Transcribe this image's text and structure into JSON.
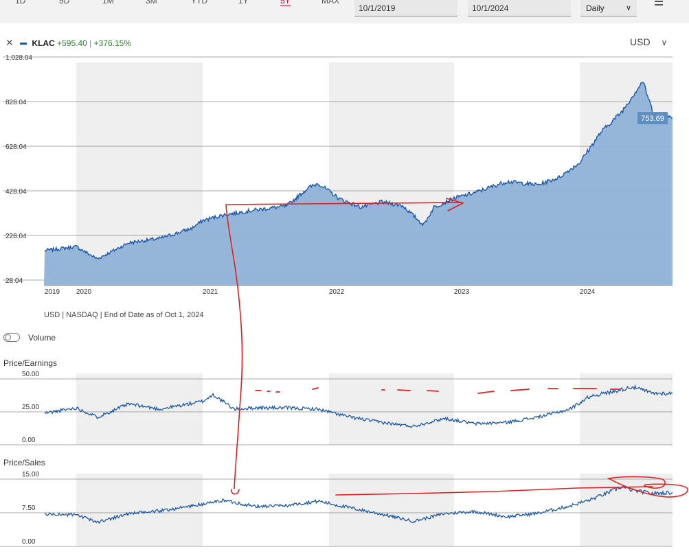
{
  "periods": [
    {
      "label": "1D",
      "active": false
    },
    {
      "label": "5D",
      "active": false
    },
    {
      "label": "1M",
      "active": false
    },
    {
      "label": "3M",
      "active": false
    },
    {
      "label": "YTD",
      "active": false
    },
    {
      "label": "1Y",
      "active": false
    },
    {
      "label": "5Y",
      "active": true
    },
    {
      "label": "MAX",
      "active": false
    }
  ],
  "date_range": {
    "start": "10/1/2019",
    "end": "10/1/2024"
  },
  "frequency": "Daily",
  "legend": {
    "ticker": "KLAC",
    "change": "+595.40",
    "change_pct": "+376.15%",
    "separator": "|"
  },
  "currency": "USD",
  "source_note": "USD | NASDAQ | End of Date as of Oct 1, 2024",
  "volume_label": "Volume",
  "colors": {
    "line": "#1c57a5",
    "area": "#8fb2d6",
    "band": "#efefef",
    "annotation": "#e01f1f",
    "positive": "#2f7d32"
  },
  "chart_data": [
    {
      "type": "area",
      "title": "KLAC",
      "x_tick_labels": [
        "2019",
        "2020",
        "2021",
        "2022",
        "2023",
        "2024"
      ],
      "y_ticks": [
        28.04,
        228.04,
        428.04,
        628.04,
        828.04,
        1028.04
      ],
      "y_tick_labels": [
        "28.04",
        "228.04",
        "428.04",
        "628.04",
        "828.04",
        "1,028.04"
      ],
      "ylim": [
        28.04,
        1028.04
      ],
      "last_value_label": "753.69",
      "x": [
        "2019-10",
        "2020-01",
        "2020-03",
        "2020-06",
        "2020-09",
        "2020-12",
        "2021-01",
        "2021-03",
        "2021-06",
        "2021-09",
        "2021-11",
        "2021-12",
        "2022-02",
        "2022-04",
        "2022-06",
        "2022-08",
        "2022-10",
        "2022-11",
        "2023-01",
        "2023-03",
        "2023-06",
        "2023-09",
        "2023-11",
        "2024-01",
        "2024-03",
        "2024-05",
        "2024-07",
        "2024-08",
        "2024-10"
      ],
      "values": [
        160,
        178,
        123,
        195,
        215,
        260,
        295,
        320,
        342,
        360,
        440,
        462,
        392,
        355,
        378,
        362,
        275,
        355,
        395,
        420,
        470,
        455,
        488,
        555,
        690,
        783,
        920,
        775,
        754
      ]
    },
    {
      "type": "line",
      "title": "Price/Earnings",
      "y_ticks": [
        0,
        25,
        50
      ],
      "y_tick_labels": [
        "0.00",
        "25.00",
        "50.00"
      ],
      "ylim": [
        0,
        50
      ],
      "x": [
        "2019-10",
        "2020-01",
        "2020-03",
        "2020-06",
        "2020-09",
        "2021-01",
        "2021-02",
        "2021-04",
        "2021-06",
        "2021-09",
        "2021-12",
        "2022-03",
        "2022-06",
        "2022-09",
        "2022-12",
        "2023-03",
        "2023-06",
        "2023-09",
        "2023-12",
        "2024-02",
        "2024-04",
        "2024-05",
        "2024-06",
        "2024-08",
        "2024-10"
      ],
      "values": [
        24,
        28,
        21,
        31,
        27,
        33,
        38,
        27,
        28,
        28,
        27,
        21,
        17,
        14,
        20,
        16,
        17,
        21,
        27,
        37,
        40,
        42,
        44,
        39,
        39
      ]
    },
    {
      "type": "line",
      "title": "Price/Sales",
      "y_ticks": [
        0,
        7.5,
        15
      ],
      "y_tick_labels": [
        "0.00",
        "7.50",
        "15.00"
      ],
      "ylim": [
        0,
        15
      ],
      "x": [
        "2019-10",
        "2020-01",
        "2020-03",
        "2020-06",
        "2020-09",
        "2021-01",
        "2021-03",
        "2021-06",
        "2021-09",
        "2021-12",
        "2022-03",
        "2022-06",
        "2022-09",
        "2022-12",
        "2023-03",
        "2023-06",
        "2023-09",
        "2023-12",
        "2024-02",
        "2024-04",
        "2024-05",
        "2024-06",
        "2024-08",
        "2024-10"
      ],
      "values": [
        7.2,
        7.0,
        5.4,
        7.3,
        7.9,
        9.4,
        10.3,
        8.9,
        9.1,
        10.1,
        8.6,
        7.2,
        5.6,
        7.3,
        7.8,
        6.6,
        7.4,
        9.0,
        10.4,
        12.3,
        13.3,
        12.5,
        11.8,
        12.0
      ]
    }
  ]
}
